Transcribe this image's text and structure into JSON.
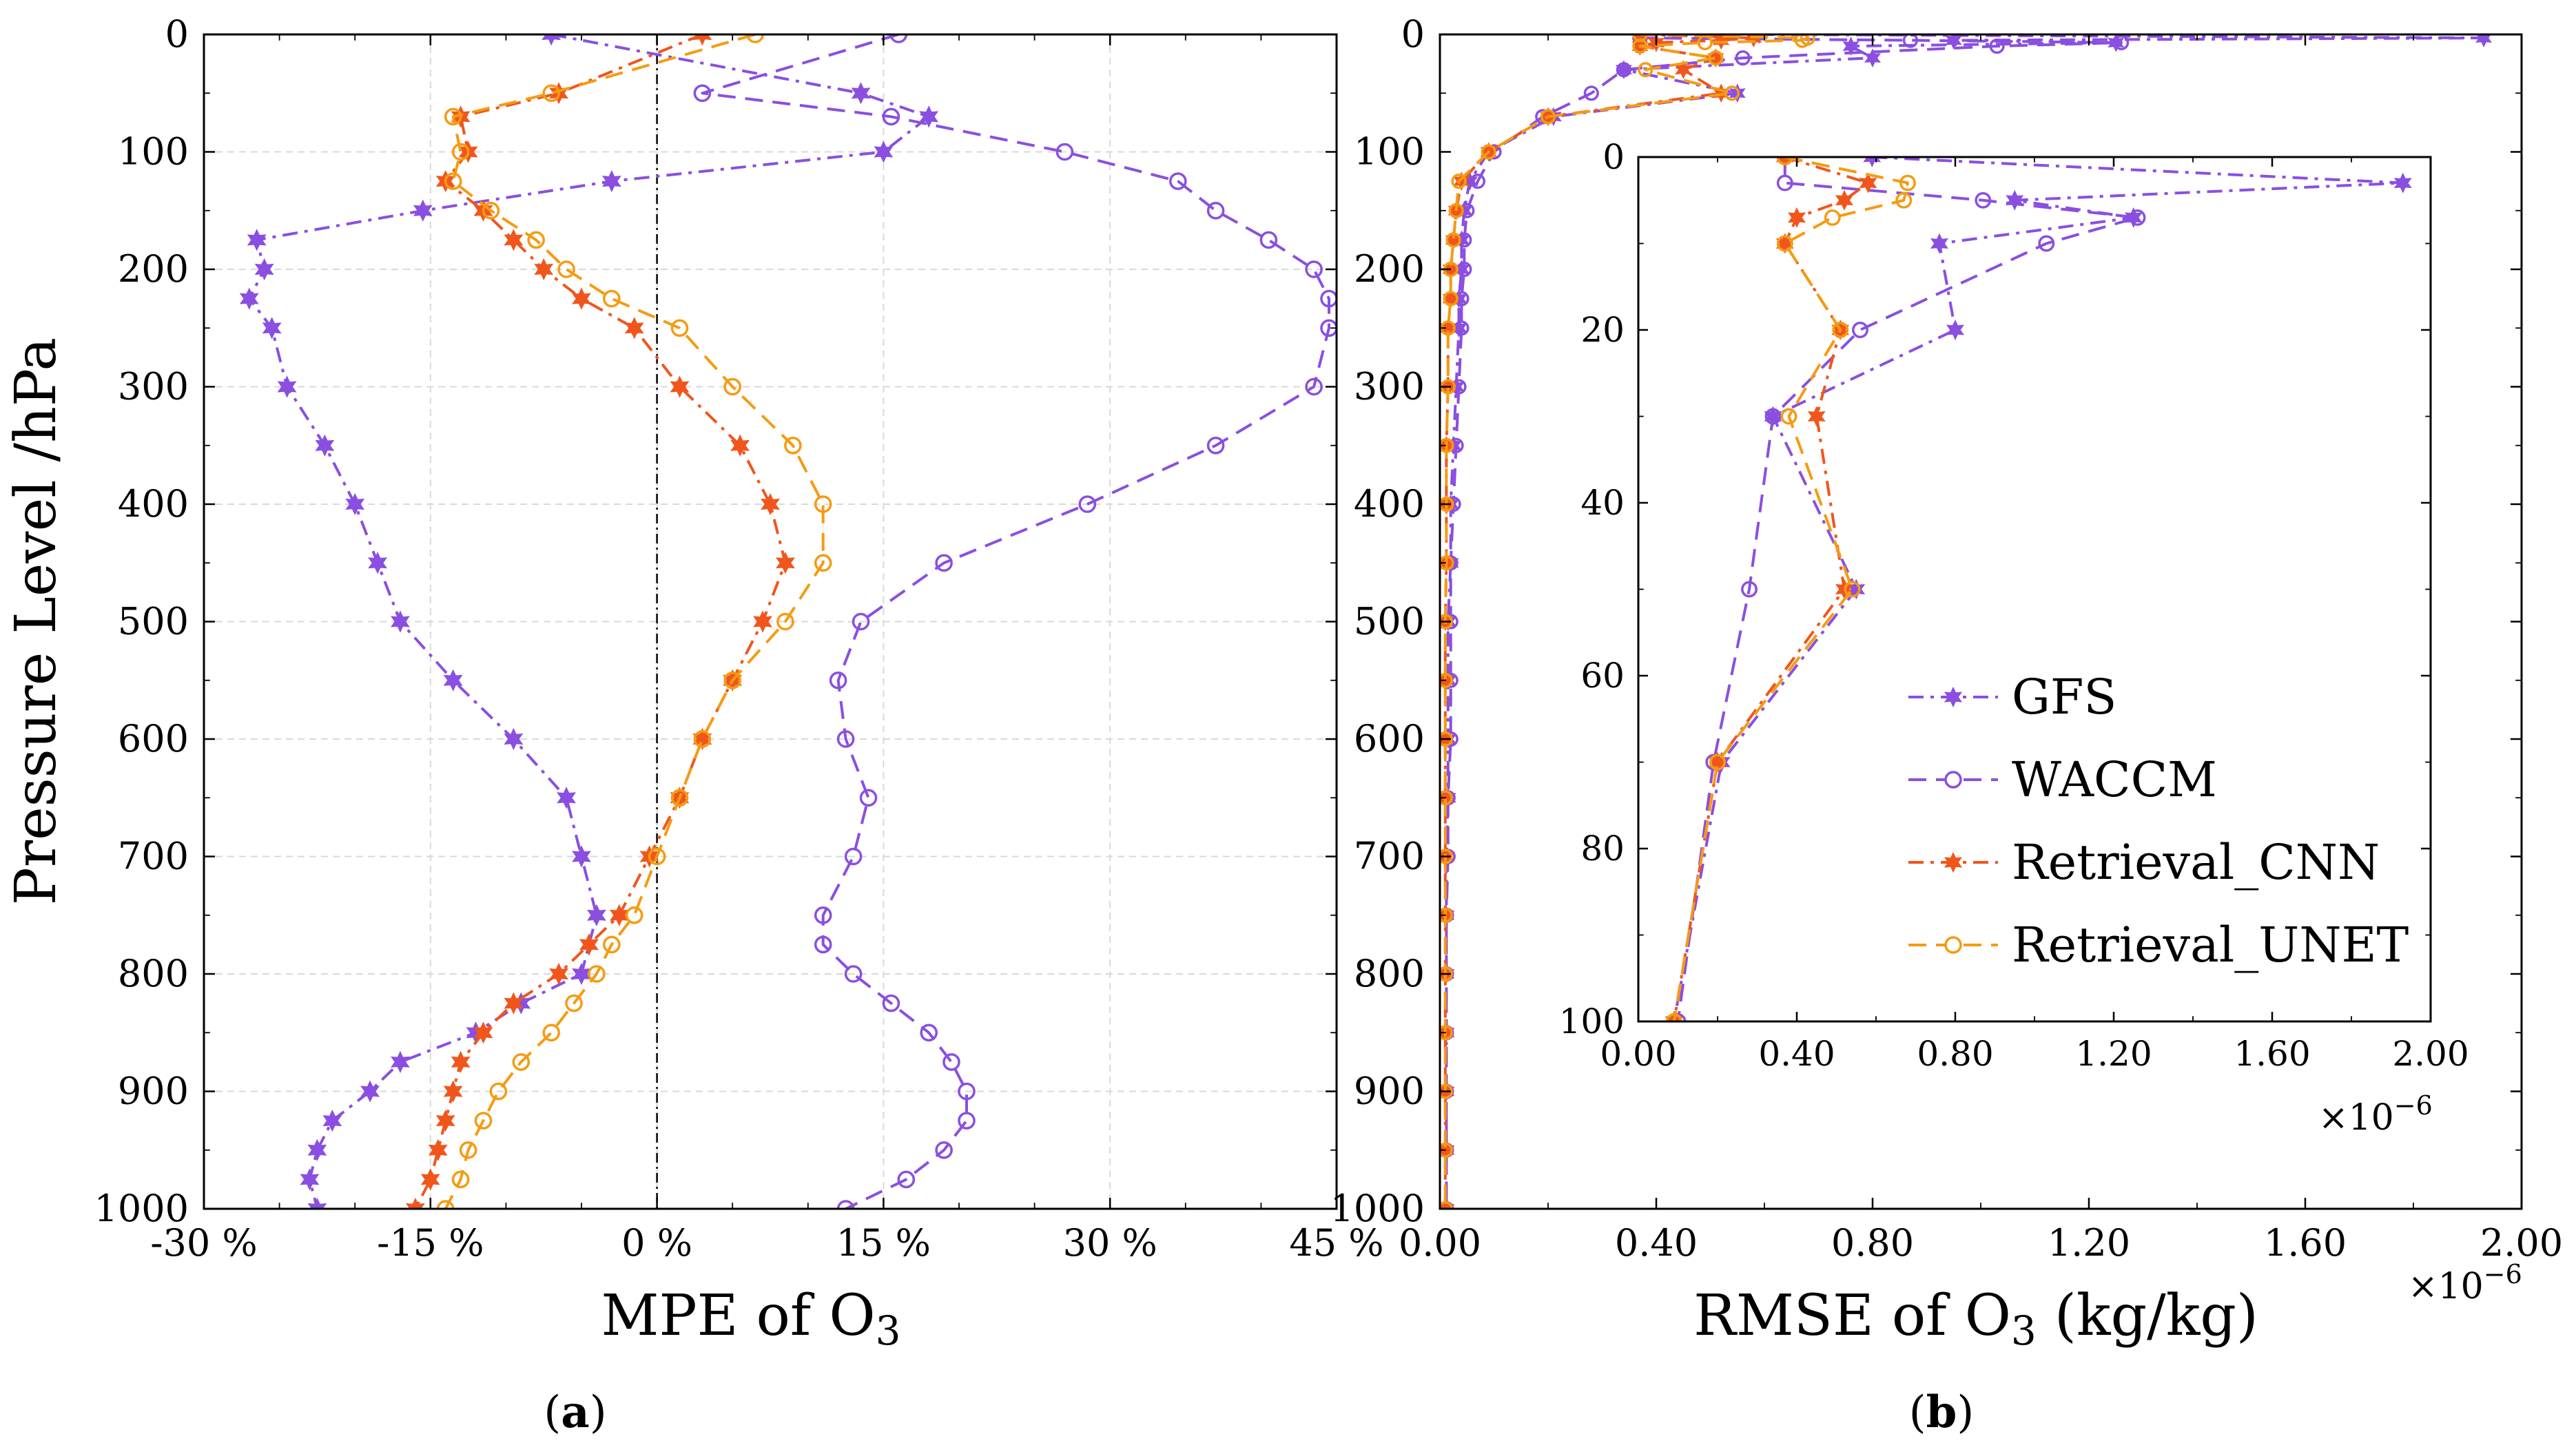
{
  "figure": {
    "colors": {
      "GFS": "#8a4fe0",
      "WACCM": "#8a4fe0",
      "Retrieval_CNN": "#f0561c",
      "Retrieval_UNET": "#f59b12",
      "zero_line": "#000000"
    },
    "exp_label": "×10",
    "exp_power": "−6"
  },
  "chart_data": [
    {
      "panel": "a",
      "panel_label_open": "(",
      "panel_label_letter": "a",
      "panel_label_close": ")",
      "type": "line",
      "title": "",
      "xlabel_main": "MPE of O",
      "xlabel_sub": "3",
      "ylabel": "Pressure Level /hPa",
      "xlim": [
        -30,
        45
      ],
      "ylim": [
        0,
        1000
      ],
      "y_inverted": true,
      "grid": true,
      "xticks": [
        -30,
        -15,
        0,
        15,
        30,
        45
      ],
      "xtick_labels": [
        "-30 %",
        "-15 %",
        "0 %",
        "15 %",
        "30 %",
        "45 %"
      ],
      "yticks": [
        0,
        100,
        200,
        300,
        400,
        500,
        600,
        700,
        800,
        900,
        1000
      ],
      "ytick_labels": [
        "0",
        "100",
        "200",
        "300",
        "400",
        "500",
        "600",
        "700",
        "800",
        "900",
        "1000"
      ],
      "reference_line_x": 0,
      "series": [
        {
          "name": "GFS",
          "marker": "star",
          "dash": "dashdot",
          "y": [
            0,
            50,
            70,
            100,
            125,
            150,
            175,
            200,
            225,
            250,
            300,
            350,
            400,
            450,
            500,
            550,
            600,
            650,
            700,
            750,
            775,
            800,
            825,
            850,
            875,
            900,
            925,
            950,
            975,
            1000
          ],
          "x": [
            -7,
            13.5,
            18,
            15,
            -3,
            -15.5,
            -26.5,
            -26,
            -27,
            -25.5,
            -24.5,
            -22,
            -20,
            -18.5,
            -17,
            -13.5,
            -9.5,
            -6,
            -5,
            -4,
            -4.5,
            -5,
            -9,
            -12,
            -17,
            -19,
            -21.5,
            -22.5,
            -23,
            -22.5
          ]
        },
        {
          "name": "WACCM",
          "marker": "circle",
          "dash": "dashed",
          "y": [
            0,
            50,
            70,
            100,
            125,
            150,
            175,
            200,
            225,
            250,
            300,
            350,
            400,
            450,
            500,
            550,
            600,
            650,
            700,
            750,
            775,
            800,
            825,
            850,
            875,
            900,
            925,
            950,
            975,
            1000
          ],
          "x": [
            16,
            3,
            15.5,
            27,
            34.5,
            37,
            40.5,
            43.5,
            44.5,
            44.5,
            43.5,
            37,
            28.5,
            19,
            13.5,
            12,
            12.5,
            14,
            13,
            11,
            11,
            13,
            15.5,
            18,
            19.5,
            20.5,
            20.5,
            19,
            16.5,
            12.5
          ]
        },
        {
          "name": "Retrieval_CNN",
          "marker": "star",
          "dash": "dashdot",
          "y": [
            0,
            50,
            70,
            100,
            125,
            150,
            175,
            200,
            225,
            250,
            300,
            350,
            400,
            450,
            500,
            550,
            600,
            650,
            700,
            750,
            775,
            800,
            825,
            850,
            875,
            900,
            925,
            950,
            975,
            1000
          ],
          "x": [
            3,
            -6.5,
            -13,
            -12.5,
            -14,
            -11.5,
            -9.5,
            -7.5,
            -5,
            -1.5,
            1.5,
            5.5,
            7.5,
            8.5,
            7,
            5,
            3,
            1.5,
            -0.5,
            -2.5,
            -4.5,
            -6.5,
            -9.5,
            -11.5,
            -13,
            -13.5,
            -14,
            -14.5,
            -15,
            -16
          ]
        },
        {
          "name": "Retrieval_UNET",
          "marker": "circle",
          "dash": "dashed",
          "y": [
            0,
            50,
            70,
            100,
            125,
            150,
            175,
            200,
            225,
            250,
            300,
            350,
            400,
            450,
            500,
            550,
            600,
            650,
            700,
            750,
            775,
            800,
            825,
            850,
            875,
            900,
            925,
            950,
            975,
            1000
          ],
          "x": [
            6.5,
            -7,
            -13.5,
            -13,
            -13.5,
            -11,
            -8,
            -6,
            -3,
            1.5,
            5,
            9,
            11,
            11,
            8.5,
            5,
            3,
            1.5,
            0,
            -1.5,
            -3,
            -4,
            -5.5,
            -7,
            -9,
            -10.5,
            -11.5,
            -12.5,
            -13,
            -14
          ]
        }
      ]
    },
    {
      "panel": "b",
      "panel_label_open": "(",
      "panel_label_letter": "b",
      "panel_label_close": ")",
      "type": "line",
      "title": "",
      "xlabel_main": "RMSE of O",
      "xlabel_sub": "3",
      "xlabel_unit": " (kg/kg)",
      "xlabel_scale": "×10−6",
      "xlim": [
        0,
        2.0
      ],
      "ylim": [
        0,
        1000
      ],
      "y_inverted": true,
      "grid": false,
      "xticks": [
        0,
        0.4,
        0.8,
        1.2,
        1.6,
        2.0
      ],
      "xtick_labels": [
        "0.00",
        "0.40",
        "0.80",
        "1.20",
        "1.60",
        "2.00"
      ],
      "yticks": [
        0,
        100,
        200,
        300,
        400,
        500,
        600,
        700,
        800,
        900,
        1000
      ],
      "ytick_labels": [
        "0",
        "100",
        "200",
        "300",
        "400",
        "500",
        "600",
        "700",
        "800",
        "900",
        "1000"
      ],
      "series": [
        {
          "name": "GFS",
          "marker": "star",
          "dash": "dashdot",
          "y": [
            0,
            3,
            5,
            7,
            10,
            20,
            30,
            50,
            70,
            100,
            125,
            150,
            175,
            200,
            225,
            250,
            300,
            350,
            400,
            450,
            500,
            550,
            600,
            650,
            700,
            750,
            800,
            850,
            900,
            950,
            1000
          ],
          "x": [
            0.59,
            1.93,
            0.95,
            1.25,
            0.76,
            0.8,
            0.34,
            0.55,
            0.21,
            0.09,
            0.055,
            0.045,
            0.04,
            0.04,
            0.035,
            0.035,
            0.03,
            0.025,
            0.02,
            0.02,
            0.015,
            0.015,
            0.015,
            0.015,
            0.012,
            0.012,
            0.012,
            0.012,
            0.012,
            0.012,
            0.012
          ]
        },
        {
          "name": "WACCM",
          "marker": "circle",
          "dash": "dashed",
          "y": [
            0,
            3,
            5,
            7,
            10,
            20,
            30,
            50,
            70,
            100,
            125,
            150,
            175,
            200,
            225,
            250,
            300,
            350,
            400,
            450,
            500,
            550,
            600,
            650,
            700,
            750,
            800,
            850,
            900,
            950,
            1000
          ],
          "x": [
            0.37,
            0.37,
            0.87,
            1.26,
            1.03,
            0.56,
            0.34,
            0.28,
            0.19,
            0.1,
            0.07,
            0.05,
            0.045,
            0.045,
            0.04,
            0.04,
            0.035,
            0.03,
            0.025,
            0.02,
            0.02,
            0.02,
            0.02,
            0.015,
            0.015,
            0.012,
            0.012,
            0.012,
            0.012,
            0.012,
            0.012
          ]
        },
        {
          "name": "Retrieval_CNN",
          "marker": "star",
          "dash": "dashdot",
          "y": [
            0,
            3,
            5,
            7,
            10,
            20,
            30,
            50,
            70,
            100,
            125,
            150,
            175,
            200,
            225,
            250,
            300,
            350,
            400,
            450,
            500,
            550,
            600,
            650,
            700,
            750,
            800,
            850,
            900,
            950,
            1000
          ],
          "x": [
            0.37,
            0.58,
            0.52,
            0.4,
            0.37,
            0.51,
            0.45,
            0.52,
            0.2,
            0.09,
            0.04,
            0.03,
            0.025,
            0.02,
            0.02,
            0.015,
            0.015,
            0.012,
            0.012,
            0.012,
            0.01,
            0.01,
            0.01,
            0.01,
            0.01,
            0.01,
            0.01,
            0.01,
            0.01,
            0.01,
            0.01
          ]
        },
        {
          "name": "Retrieval_UNET",
          "marker": "circle",
          "dash": "dashed",
          "y": [
            0,
            3,
            5,
            7,
            10,
            20,
            30,
            50,
            70,
            100,
            125,
            150,
            175,
            200,
            225,
            250,
            300,
            350,
            400,
            450,
            500,
            550,
            600,
            650,
            700,
            750,
            800,
            850,
            900,
            950,
            1000
          ],
          "x": [
            0.37,
            0.68,
            0.67,
            0.49,
            0.37,
            0.51,
            0.38,
            0.54,
            0.2,
            0.09,
            0.035,
            0.03,
            0.025,
            0.02,
            0.02,
            0.015,
            0.015,
            0.012,
            0.012,
            0.012,
            0.01,
            0.01,
            0.01,
            0.01,
            0.01,
            0.01,
            0.01,
            0.01,
            0.01,
            0.01,
            0.01
          ]
        }
      ],
      "inset": {
        "xlim": [
          0,
          2.0
        ],
        "ylim": [
          0,
          100
        ],
        "y_inverted": true,
        "xticks": [
          0,
          0.4,
          0.8,
          1.2,
          1.6,
          2.0
        ],
        "xtick_labels": [
          "0.00",
          "0.40",
          "0.80",
          "1.20",
          "1.60",
          "2.00"
        ],
        "yticks": [
          0,
          20,
          40,
          60,
          80,
          100
        ],
        "ytick_labels": [
          "0",
          "20",
          "40",
          "60",
          "80",
          "100"
        ],
        "xlabel_scale": "×10−6",
        "legend": [
          "GFS",
          "WACCM",
          "Retrieval_CNN",
          "Retrieval_UNET"
        ]
      }
    }
  ]
}
